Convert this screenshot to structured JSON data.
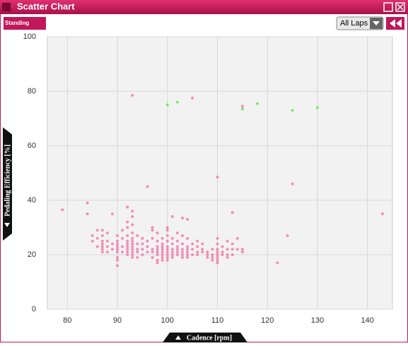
{
  "window": {
    "title": "Scatter Chart",
    "badge": "Standing",
    "dropdown": "All Laps"
  },
  "chart_data": {
    "type": "scatter",
    "x_label": "Cadence [rpm]",
    "y_label": "Pedaling Efficiency [%]",
    "xlim": [
      76,
      145
    ],
    "ylim": [
      0,
      100
    ],
    "xticks": [
      80,
      90,
      100,
      110,
      120,
      130,
      140
    ],
    "yticks": [
      0,
      20,
      40,
      60,
      80,
      100
    ],
    "grid": true,
    "series": [
      {
        "color": "#f07fa8",
        "x": [
          79,
          84,
          84,
          89,
          93,
          105,
          115,
          96,
          110,
          125,
          113,
          124,
          122,
          143,
          90,
          92,
          93,
          101,
          103,
          104,
          100,
          85,
          85,
          86,
          86,
          86,
          87,
          87,
          87,
          87,
          87,
          87,
          87,
          88,
          88,
          88,
          88,
          89,
          89,
          90,
          90,
          90,
          90,
          90,
          90,
          90,
          90,
          91,
          91,
          91,
          91,
          92,
          92,
          92,
          92,
          92,
          92,
          92,
          92,
          92,
          93,
          93,
          93,
          93,
          93,
          93,
          93,
          93,
          93,
          93,
          93,
          94,
          94,
          94,
          94,
          94,
          95,
          95,
          95,
          95,
          96,
          96,
          96,
          97,
          97,
          97,
          97,
          97,
          97,
          98,
          98,
          98,
          98,
          98,
          98,
          98,
          98,
          99,
          99,
          99,
          99,
          99,
          99,
          99,
          99,
          100,
          100,
          100,
          100,
          100,
          100,
          100,
          100,
          100,
          101,
          101,
          101,
          101,
          101,
          101,
          102,
          102,
          102,
          102,
          102,
          102,
          103,
          103,
          103,
          103,
          103,
          103,
          104,
          104,
          104,
          104,
          104,
          104,
          105,
          105,
          105,
          106,
          106,
          106,
          106,
          107,
          107,
          107,
          108,
          108,
          108,
          109,
          109,
          109,
          109,
          110,
          110,
          110,
          110,
          110,
          110,
          110,
          110,
          111,
          111,
          111,
          112,
          112,
          112,
          112,
          113,
          113,
          113,
          114,
          114,
          115,
          115
        ],
        "values": [
          36.5,
          39,
          35,
          35,
          78.5,
          77.5,
          74.5,
          45,
          48.5,
          46,
          35.5,
          27,
          17,
          35,
          16,
          37.5,
          36,
          34,
          33.5,
          33,
          30,
          27,
          25,
          29,
          26,
          23,
          29,
          27,
          25,
          24,
          23,
          22,
          21,
          28,
          25,
          23,
          21,
          24,
          22,
          27,
          25,
          24,
          23,
          22,
          21,
          19,
          18,
          29,
          26,
          23,
          21,
          32,
          30,
          27,
          25,
          24,
          23,
          22,
          21,
          20,
          34,
          31,
          28,
          26,
          25,
          24,
          23,
          22,
          21,
          20,
          19,
          27,
          24,
          22,
          21,
          19,
          26,
          24,
          22,
          20,
          25,
          23,
          21,
          30,
          29,
          26,
          22,
          21,
          19,
          28,
          25,
          23,
          22,
          21,
          20,
          18,
          17,
          26,
          24,
          23,
          22,
          21,
          20,
          19,
          18,
          29,
          27,
          25,
          23,
          22,
          21,
          20,
          19,
          18,
          26,
          24,
          22,
          21,
          20,
          19,
          28,
          25,
          23,
          22,
          21,
          20,
          27,
          24,
          22,
          21,
          20,
          19,
          26,
          23,
          22,
          21,
          20,
          19,
          24,
          22,
          20,
          25,
          23,
          21,
          20,
          24,
          22,
          21,
          21,
          20,
          19,
          22,
          20,
          19,
          18,
          26,
          24,
          22,
          21,
          20,
          19,
          18,
          17,
          23,
          21,
          20,
          25,
          22,
          20,
          19,
          24,
          22,
          20,
          26,
          22,
          22,
          21
        ]
      },
      {
        "color": "#66e855",
        "x": [
          100,
          102,
          115,
          118,
          125,
          130
        ],
        "values": [
          75,
          76,
          73.5,
          75.5,
          73,
          74
        ]
      }
    ]
  }
}
